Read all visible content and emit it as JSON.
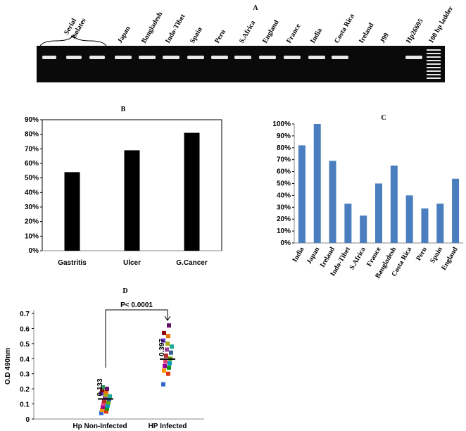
{
  "panel_a": {
    "title": "A",
    "serial": [
      "Serial",
      "Isolates"
    ],
    "lanes": [
      "Japan",
      "Bangladesh",
      "Indo-Tibet",
      "Spain",
      "Peru",
      "S.Africa",
      "England",
      "France",
      "India",
      "Costa Rica",
      "Ireland",
      "J99",
      "Hp26695",
      "100 bp ladder"
    ]
  },
  "chart_data": [
    {
      "type": "bar",
      "title": "B",
      "categories": [
        "Gastritis",
        "Ulcer",
        "G.Cancer"
      ],
      "values": [
        54,
        69,
        81
      ],
      "color": "#000000",
      "ylim": [
        0,
        90
      ],
      "yticks": [
        {
          "value": 0,
          "label": "0%"
        },
        {
          "value": 10,
          "label": "10%"
        },
        {
          "value": 20,
          "label": "20%"
        },
        {
          "value": 30,
          "label": "30%"
        },
        {
          "value": 40,
          "label": "40%"
        },
        {
          "value": 50,
          "label": "50%"
        },
        {
          "value": 60,
          "label": "60%"
        },
        {
          "value": 70,
          "label": "70%"
        },
        {
          "value": 80,
          "label": "80%"
        },
        {
          "value": 90,
          "label": "90%"
        }
      ]
    },
    {
      "type": "bar",
      "title": "C",
      "categories": [
        "India",
        "Japan",
        "Ireland",
        "Indo-Tibet",
        "S.Africa",
        "France",
        "Bangladesh",
        "Costa Rica",
        "Peru",
        "Spain",
        "England"
      ],
      "values": [
        82,
        100,
        69,
        33,
        23,
        50,
        65,
        40,
        29,
        33,
        54
      ],
      "color": "#4a7ebf",
      "ylim": [
        0,
        100
      ],
      "yticks": [
        {
          "value": 0,
          "label": "0%"
        },
        {
          "value": 10,
          "label": "10%"
        },
        {
          "value": 20,
          "label": "20%"
        },
        {
          "value": 30,
          "label": "30%"
        },
        {
          "value": 40,
          "label": "40%"
        },
        {
          "value": 50,
          "label": "50%"
        },
        {
          "value": 60,
          "label": "60%"
        },
        {
          "value": 70,
          "label": "70%"
        },
        {
          "value": 80,
          "label": "80%"
        },
        {
          "value": 90,
          "label": "90%"
        },
        {
          "value": 100,
          "label": "100%"
        }
      ]
    },
    {
      "type": "scatter",
      "title": "D",
      "y_label": "O.D 490nm",
      "annotation": "P< 0.0001",
      "categories": [
        "Hp Non-Infected",
        "HP Infected"
      ],
      "points": [
        [
          0.04,
          0.05,
          0.06,
          0.07,
          0.08,
          0.09,
          0.1,
          0.11,
          0.12,
          0.13,
          0.14,
          0.15,
          0.16,
          0.17,
          0.18,
          0.19,
          0.2,
          0.21
        ],
        [
          0.23,
          0.3,
          0.32,
          0.34,
          0.35,
          0.37,
          0.38,
          0.4,
          0.42,
          0.44,
          0.46,
          0.48,
          0.5,
          0.52,
          0.55,
          0.57,
          0.62
        ]
      ],
      "means": [
        0.133,
        0.397
      ],
      "mean_labels": [
        "0.133",
        "0.397"
      ],
      "ylim": [
        0,
        0.7
      ],
      "yticks": [
        0,
        0.1,
        0.2,
        0.3,
        0.4,
        0.5,
        0.6,
        0.7
      ]
    }
  ]
}
